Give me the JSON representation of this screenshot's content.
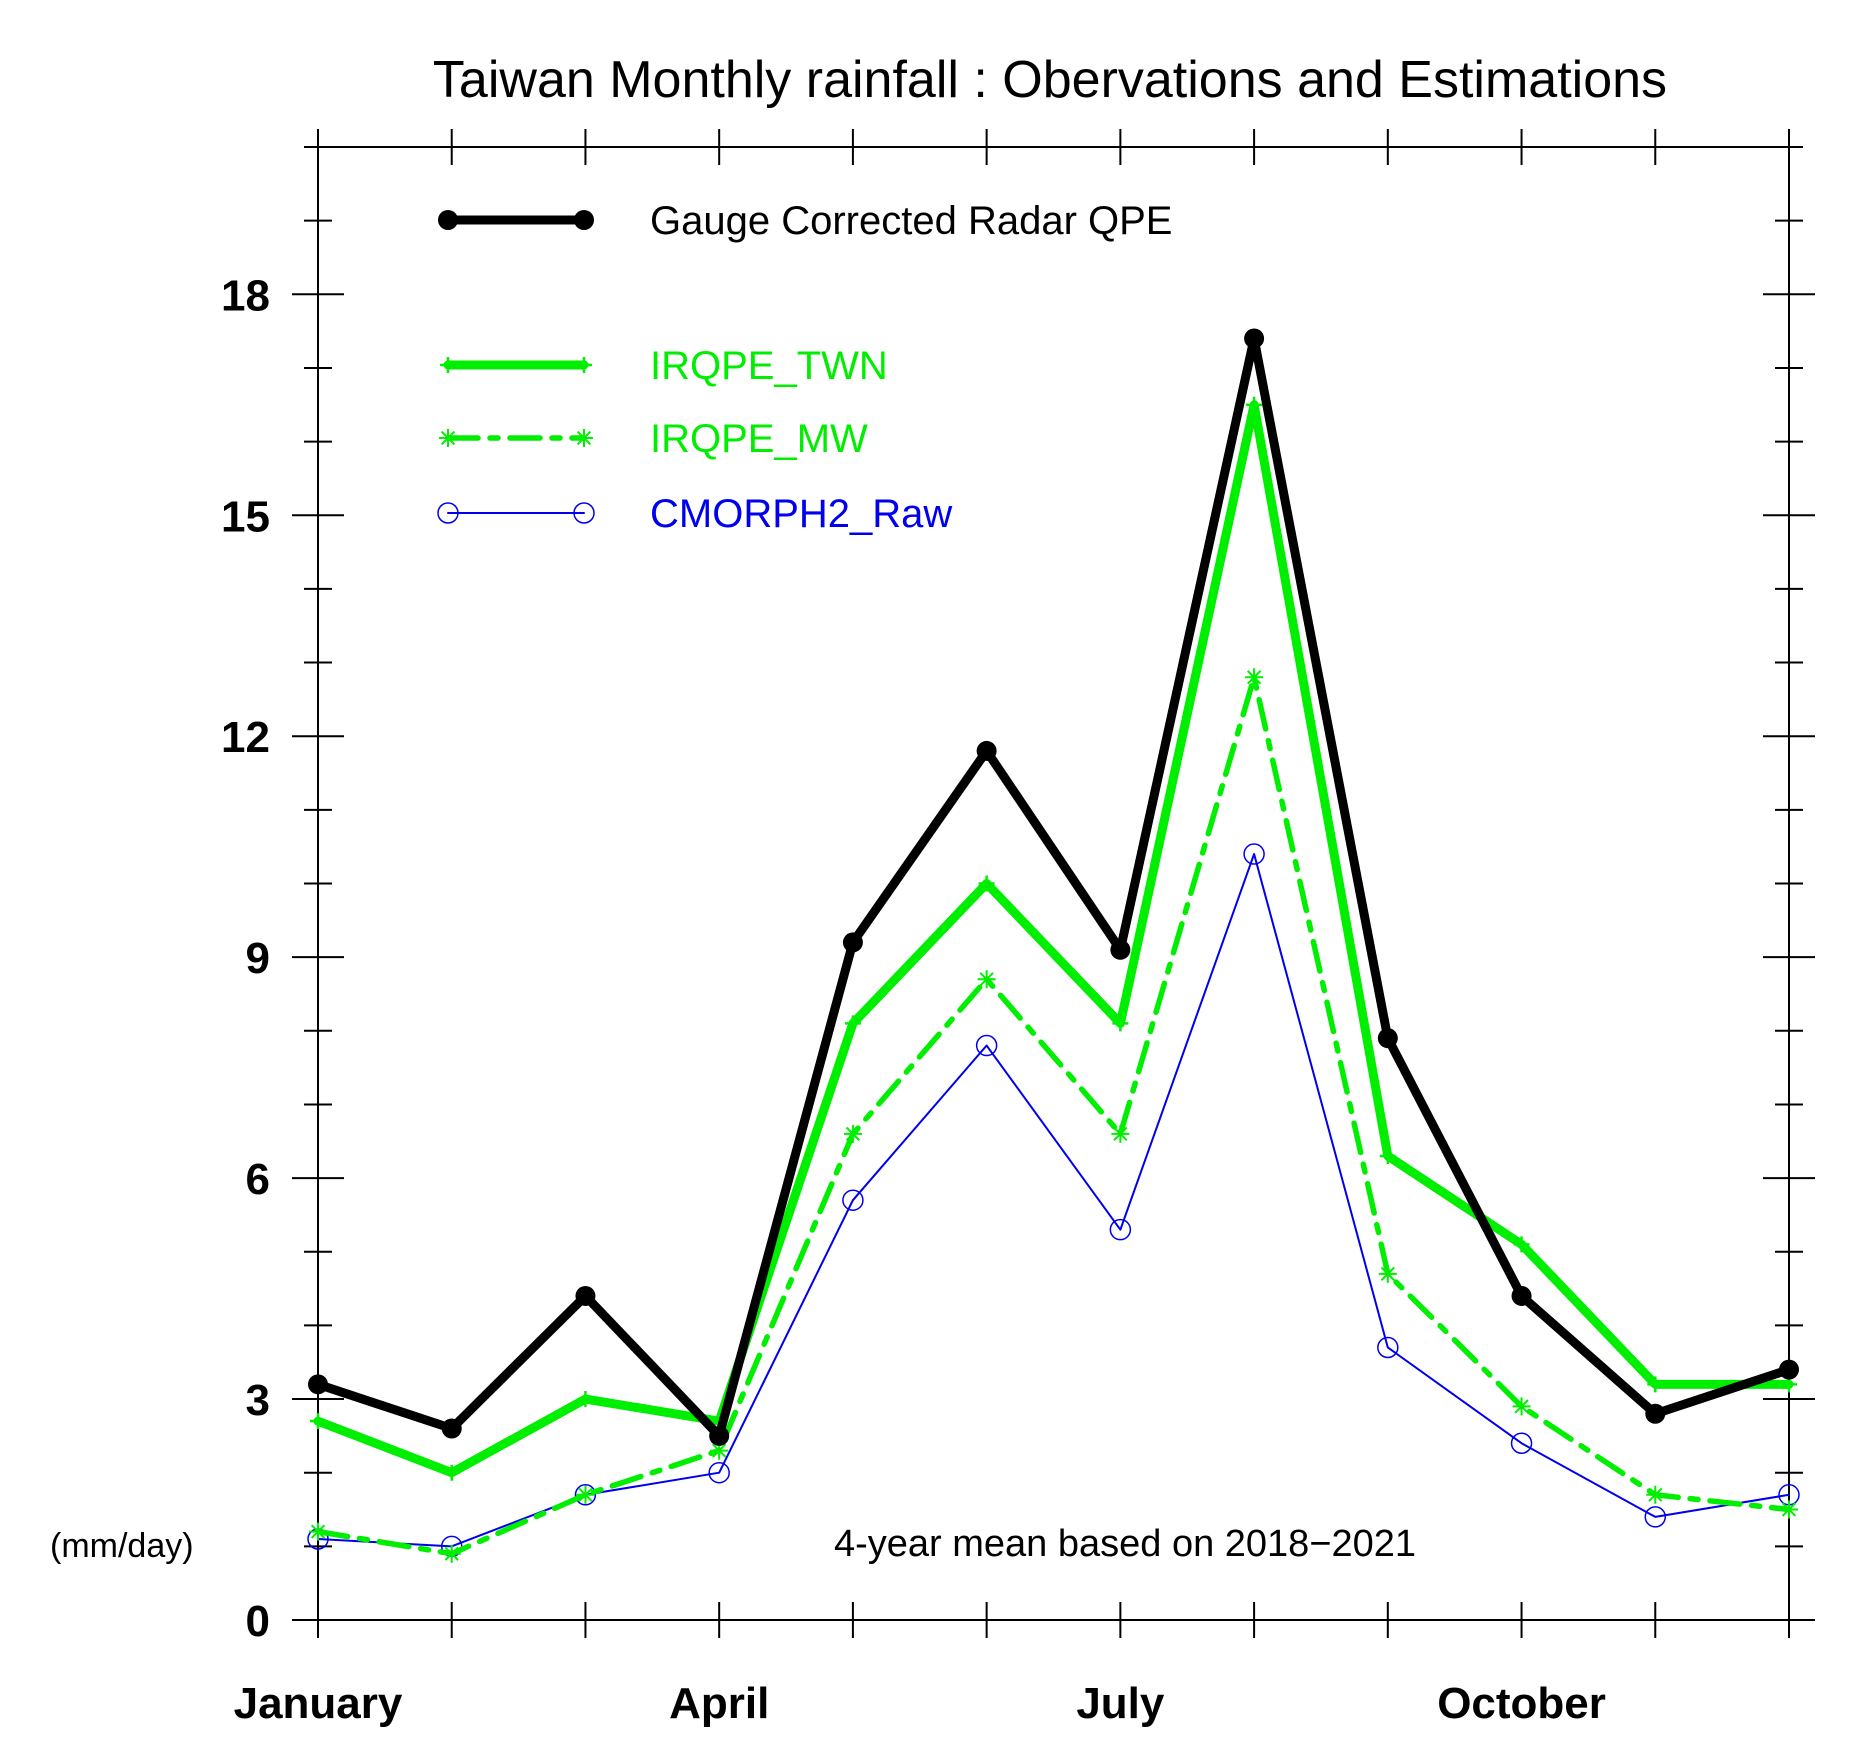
{
  "chart_data": {
    "type": "line",
    "title": "Taiwan Monthly rainfall : Obervations and Estimations",
    "ylabel": "(mm/day)",
    "annotation": "4-year mean based on 2018−2021",
    "x": [
      1,
      2,
      3,
      4,
      5,
      6,
      7,
      8,
      9,
      10,
      11,
      12
    ],
    "xlim": [
      1,
      12
    ],
    "ylim": [
      0,
      20
    ],
    "x_major_ticks": [
      1,
      4,
      7,
      10
    ],
    "x_tick_labels": [
      "January",
      "April",
      "July",
      "October"
    ],
    "y_major_ticks": [
      0,
      3,
      6,
      9,
      12,
      15,
      18
    ],
    "y_tick_labels": [
      "0",
      "3",
      "6",
      "9",
      "12",
      "15",
      "18"
    ],
    "grid": false,
    "legend_position": "top-left",
    "series": [
      {
        "name": "Gauge Corrected Radar QPE",
        "color": "#000000",
        "style": "solid-thick",
        "marker": "dot",
        "values": [
          3.2,
          2.6,
          4.4,
          2.5,
          9.2,
          11.8,
          9.1,
          17.4,
          7.9,
          4.4,
          2.8,
          3.4
        ]
      },
      {
        "name": "IRQPE_TWN",
        "color": "#00ee00",
        "style": "solid-thick",
        "marker": "plus",
        "values": [
          2.7,
          2.0,
          3.0,
          2.7,
          8.1,
          10.0,
          8.1,
          16.5,
          6.3,
          5.1,
          3.2,
          3.2
        ]
      },
      {
        "name": "IRQPE_MW",
        "color": "#00ee00",
        "style": "dash-dot",
        "marker": "asterisk",
        "values": [
          1.2,
          0.9,
          1.7,
          2.3,
          6.6,
          8.7,
          6.6,
          12.8,
          4.7,
          2.9,
          1.7,
          1.5
        ]
      },
      {
        "name": "CMORPH2_Raw",
        "color": "#0000ee",
        "style": "solid-thin",
        "marker": "circle",
        "values": [
          1.1,
          1.0,
          1.7,
          2.0,
          5.7,
          7.8,
          5.3,
          10.4,
          3.7,
          2.4,
          1.4,
          1.7
        ]
      }
    ]
  }
}
